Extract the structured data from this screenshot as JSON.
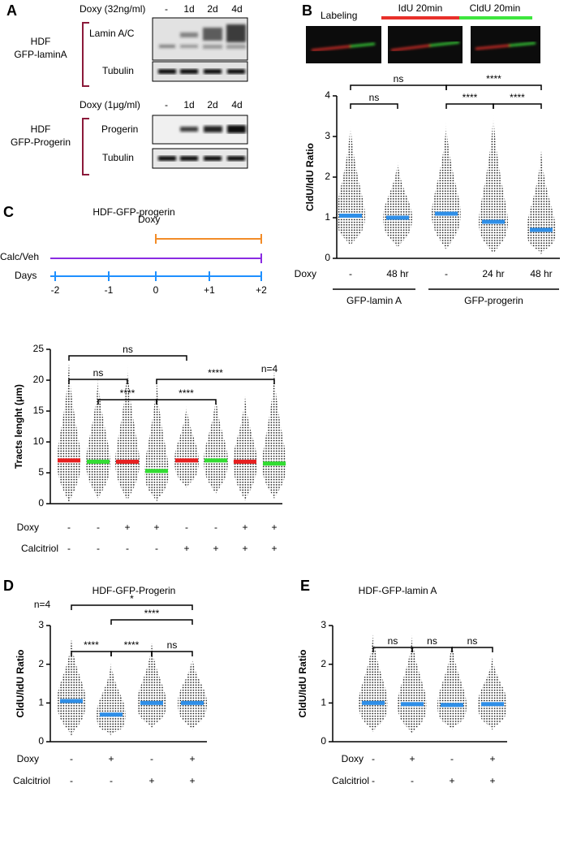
{
  "panel_labels": [
    "A",
    "B",
    "C",
    "D",
    "E"
  ],
  "blots": {
    "treatment_1": "Doxy (32ng/ml)",
    "lanes_1": [
      "-",
      "1d",
      "2d",
      "4d"
    ],
    "cell_1": [
      "HDF",
      "GFP-laminA"
    ],
    "proteins_1": [
      "Lamin A/C",
      "Tubulin"
    ],
    "treatment_2": "Doxy (1μg/ml)",
    "lanes_2": [
      "-",
      "1d",
      "2d",
      "4d"
    ],
    "cell_2": [
      "HDF",
      "GFP-Progerin"
    ],
    "proteins_2": [
      "Progerin",
      "Tubulin"
    ]
  },
  "labeling": {
    "title": "Labeling",
    "pulses": [
      {
        "label": "IdU 20min",
        "color": "#e8302a"
      },
      {
        "label": "CldU 20min",
        "color": "#3ee63e"
      }
    ]
  },
  "timeline": {
    "title": "HDF-GFP-progerin",
    "tracks": [
      {
        "label": "Doxy",
        "color": "#f28c28"
      },
      {
        "label": "Calc/Veh",
        "color": "#8a2be2"
      },
      {
        "label": "Days",
        "color": "#1e90ff"
      }
    ],
    "days": [
      "-2",
      "-1",
      "0",
      "+1",
      "+2"
    ]
  },
  "chart_data": [
    {
      "type": "dot",
      "ylabel": "CldU/IdU Ratio",
      "ylim": [
        0,
        4
      ],
      "yticks": [
        0,
        1,
        2,
        3,
        4
      ],
      "median": [
        1.05,
        1.0,
        1.1,
        0.9,
        0.7
      ],
      "min": [
        0.3,
        0.25,
        0.2,
        0.1,
        0.1
      ],
      "max": [
        3.35,
        2.4,
        3.35,
        3.6,
        2.65
      ],
      "median_colors": [
        "#2f8fe8",
        "#2f8fe8",
        "#2f8fe8",
        "#2f8fe8",
        "#2f8fe8"
      ],
      "rows": [
        {
          "label": "Doxy",
          "values": [
            "-",
            "48 hr",
            "-",
            "24 hr",
            "48 hr"
          ]
        }
      ],
      "group_labels": [
        {
          "label": "GFP-lamin A",
          "from": 0,
          "to": 1
        },
        {
          "label": "GFP-progerin",
          "from": 2,
          "to": 4
        }
      ],
      "significance": [
        {
          "from": 0,
          "to": 2,
          "label": "ns"
        },
        {
          "from": 2,
          "to": 4,
          "label": "****"
        },
        {
          "from": 0,
          "to": 1,
          "label": "ns"
        },
        {
          "from": 2,
          "to": 3,
          "label": "****"
        },
        {
          "from": 3,
          "to": 4,
          "label": "****"
        }
      ]
    },
    {
      "type": "dot",
      "ylabel": "Tracts lenght (μm)",
      "ylim": [
        0,
        25
      ],
      "yticks": [
        0,
        5,
        10,
        15,
        20,
        25
      ],
      "annotation": "n=4",
      "median": [
        7,
        6.8,
        6.8,
        5.3,
        7,
        7,
        6.8,
        6.5
      ],
      "min": [
        0.2,
        0.8,
        0.5,
        0.3,
        2.5,
        1.5,
        0.5,
        0.8
      ],
      "max": [
        22.8,
        20.5,
        22.5,
        20.2,
        16,
        17.5,
        17.4,
        21.5
      ],
      "median_colors": [
        "#e82020",
        "#33dd33",
        "#e82020",
        "#33dd33",
        "#e82020",
        "#33dd33",
        "#e82020",
        "#33dd33"
      ],
      "rows": [
        {
          "label": "Doxy",
          "values": [
            "-",
            "-",
            "+",
            "+",
            "-",
            "-",
            "+",
            "+"
          ]
        },
        {
          "label": "Calcitriol",
          "values": [
            "-",
            "-",
            "-",
            "-",
            "+",
            "+",
            "+",
            "+"
          ]
        }
      ],
      "significance": [
        {
          "from": 0,
          "to": 4,
          "label": "ns"
        },
        {
          "from": 0,
          "to": 2,
          "label": "ns"
        },
        {
          "from": 1,
          "to": 3,
          "label": "****"
        },
        {
          "from": 3,
          "to": 5,
          "label": "****"
        },
        {
          "from": 3,
          "to": 7,
          "label": "****"
        }
      ]
    },
    {
      "type": "dot",
      "title": "HDF-GFP-Progerin",
      "ylabel": "CldU/IdU Ratio",
      "ylim": [
        0,
        3
      ],
      "yticks": [
        0,
        1,
        2,
        3
      ],
      "annotation": "n=4",
      "median": [
        1.05,
        0.7,
        1.0,
        1.0
      ],
      "min": [
        0.15,
        0.15,
        0.35,
        0.3
      ],
      "max": [
        2.65,
        2.05,
        2.55,
        2.2
      ],
      "median_colors": [
        "#2f8fe8",
        "#2f8fe8",
        "#2f8fe8",
        "#2f8fe8"
      ],
      "rows": [
        {
          "label": "Doxy",
          "values": [
            "-",
            "+",
            "-",
            "+"
          ]
        },
        {
          "label": "Calcitriol",
          "values": [
            "-",
            "-",
            "+",
            "+"
          ]
        }
      ],
      "significance": [
        {
          "from": 0,
          "to": 3,
          "label": "*"
        },
        {
          "from": 1,
          "to": 3,
          "label": "****"
        },
        {
          "from": 0,
          "to": 1,
          "label": "****"
        },
        {
          "from": 1,
          "to": 2,
          "label": "****"
        },
        {
          "from": 2,
          "to": 3,
          "label": "ns"
        }
      ]
    },
    {
      "type": "dot",
      "title": "HDF-GFP-lamin A",
      "ylabel": "CldU/IdU Ratio",
      "ylim": [
        0,
        3
      ],
      "yticks": [
        0,
        1,
        2,
        3
      ],
      "median": [
        1.0,
        0.97,
        0.95,
        0.97
      ],
      "min": [
        0.25,
        0.2,
        0.3,
        0.3
      ],
      "max": [
        2.8,
        2.75,
        2.6,
        2.2
      ],
      "median_colors": [
        "#2f8fe8",
        "#2f8fe8",
        "#2f8fe8",
        "#2f8fe8"
      ],
      "rows": [
        {
          "label": "Doxy",
          "values": [
            "-",
            "+",
            "-",
            "+"
          ]
        },
        {
          "label": "Calcitriol",
          "values": [
            "-",
            "-",
            "+",
            "+"
          ]
        }
      ],
      "significance": [
        {
          "from": 0,
          "to": 1,
          "label": "ns"
        },
        {
          "from": 1,
          "to": 2,
          "label": "ns"
        },
        {
          "from": 2,
          "to": 3,
          "label": "ns"
        }
      ]
    }
  ]
}
